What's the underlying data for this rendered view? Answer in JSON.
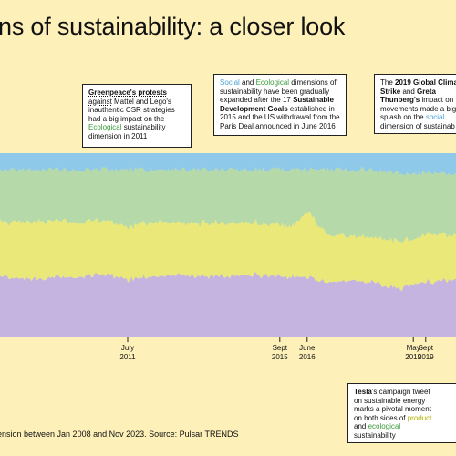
{
  "title": "ns of sustainability: a closer look",
  "source": "ension between Jan 2008 and Nov 2023. Source: Pulsar TRENDS",
  "annotations": {
    "greenpeace": {
      "l1": "Greenpeace's protests",
      "l2a": "against",
      "l2b": " Mattel and Lego's",
      "l3": "inauthentic CSR strategies",
      "l4": "had a big impact on the",
      "l5a": "Ecological",
      "l5b": " sustainability",
      "l6": "dimension in 2011"
    },
    "sdg": {
      "l1a": "Social",
      "l1b": " and ",
      "l1c": "Ecological",
      "l1d": " dimensions of",
      "l2": "sustainability have been gradually",
      "l3a": "expanded after the 17 ",
      "l3b": "Sustainable",
      "l4a": "Development Goals",
      "l4b": " established in",
      "l5": "2015 and the US withdrawal from the",
      "l6": "Paris Deal announced in June 2016"
    },
    "climate": {
      "l1a": "The ",
      "l1b": "2019 Global Clima",
      "l2a": "Strike",
      "l2b": " and ",
      "l2c": "Greta",
      "l3a": "Thunberg's",
      "l3b": " impact on",
      "l4": "movements made a big",
      "l5a": "splash on the ",
      "l5b": "social",
      "l6": "dimension of sustainab"
    },
    "tesla": {
      "l1a": "Tesla",
      "l1b": "'s campaign tweet",
      "l2": "on sustainable energy",
      "l3": "marks a pivotal moment",
      "l4a": "on both sides of ",
      "l4b": "product",
      "l5a": "and ",
      "l5b": "ecological",
      "l6": "sustainability"
    }
  },
  "chart_data": {
    "type": "area",
    "stacked": true,
    "percent": true,
    "x_ticks": [
      {
        "month": "July",
        "year": "2011",
        "t": 2011.5
      },
      {
        "month": "Sept",
        "year": "2015",
        "t": 2015.67
      },
      {
        "month": "June",
        "year": "2016",
        "t": 2016.42
      },
      {
        "month": "May",
        "year": "2019",
        "t": 2019.33
      },
      {
        "month": "Sept",
        "year": "2019",
        "t": 2019.67
      }
    ],
    "x_range": [
      2008.0,
      2020.5
    ],
    "y_range": [
      0,
      100
    ],
    "grid": false,
    "legend": "none",
    "x": [
      2008.0,
      2009.0,
      2010.0,
      2011.0,
      2011.5,
      2012.0,
      2013.0,
      2014.0,
      2015.0,
      2015.67,
      2016.0,
      2016.42,
      2017.0,
      2018.0,
      2019.0,
      2019.33,
      2019.67,
      2020.5
    ],
    "series": [
      {
        "color": "#c6b4e0",
        "values": [
          33,
          32,
          33,
          34,
          31,
          33,
          34,
          33,
          34,
          33,
          33,
          32,
          30,
          31,
          26,
          29,
          30,
          31
        ]
      },
      {
        "color": "#e9e879",
        "values": [
          30,
          31,
          30,
          29,
          28,
          30,
          28,
          29,
          28,
          28,
          27,
          36,
          25,
          24,
          26,
          25,
          26,
          25
        ]
      },
      {
        "color": "#b5d9a8",
        "values": [
          28,
          28,
          28,
          28,
          32,
          28,
          29,
          29,
          29,
          30,
          31,
          23,
          36,
          36,
          37,
          35,
          33,
          33
        ]
      },
      {
        "color": "#8ec9e9",
        "values": [
          9,
          9,
          9,
          9,
          9,
          9,
          9,
          9,
          9,
          9,
          9,
          9,
          9,
          9,
          11,
          11,
          11,
          11
        ]
      }
    ]
  }
}
